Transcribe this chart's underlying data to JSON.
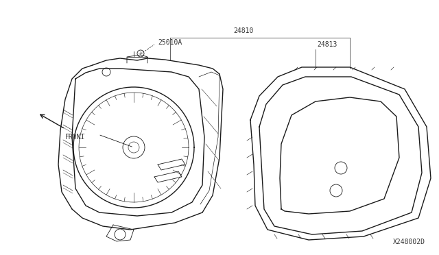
{
  "bg_color": "#ffffff",
  "line_color": "#1a1a1a",
  "label_color": "#333333",
  "diagram_id": "X248002D",
  "figsize": [
    6.4,
    3.72
  ],
  "dpi": 100
}
